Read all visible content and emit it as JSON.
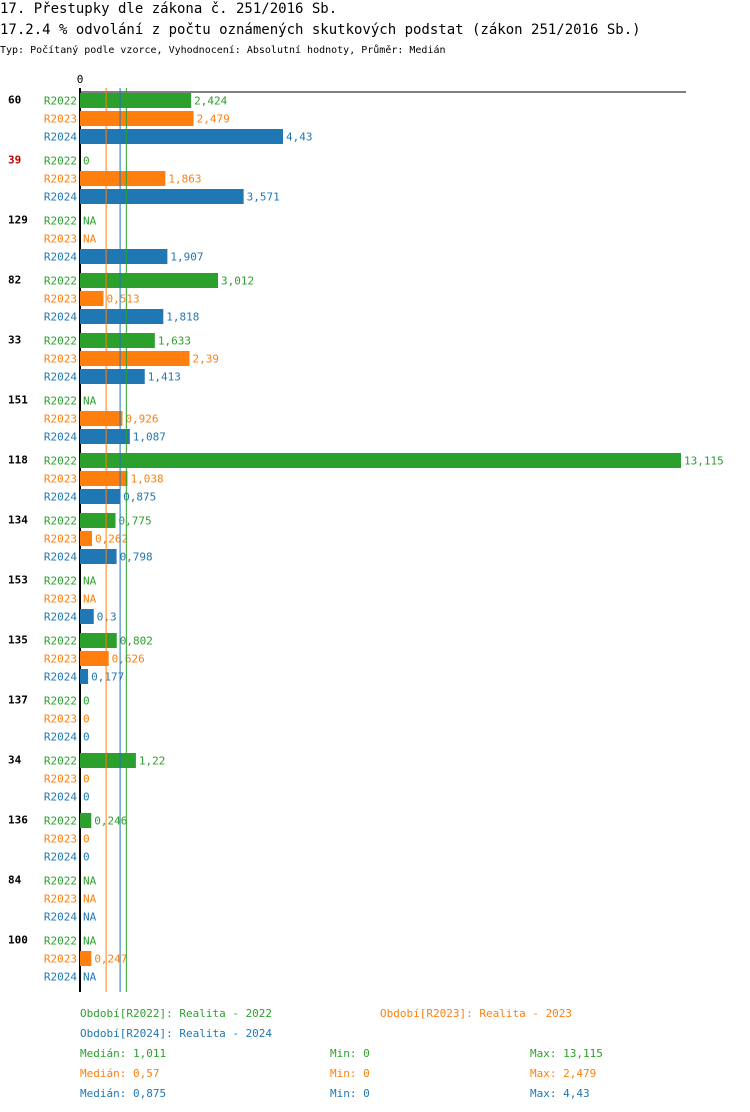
{
  "chart_data": {
    "type": "bar",
    "orientation": "horizontal",
    "title": "17. Přestupky dle zákona č. 251/2016 Sb.",
    "subtitle": "17.2.4 % odvolání z počtu oznámených skutkových podstat (zákon 251/2016 Sb.)",
    "description": "Typ: Počítaný podle vzorce, Vyhodnocení: Absolutní hodnoty, Průměr: Medián",
    "categories": [
      "60",
      "39",
      "129",
      "82",
      "33",
      "151",
      "118",
      "134",
      "153",
      "135",
      "137",
      "34",
      "136",
      "84",
      "100"
    ],
    "category_colors": [
      "#000000",
      "#c00000",
      "#000000",
      "#000000",
      "#000000",
      "#000000",
      "#000000",
      "#000000",
      "#000000",
      "#000000",
      "#000000",
      "#000000",
      "#000000",
      "#000000",
      "#000000"
    ],
    "xlim": [
      0,
      13.115
    ],
    "xticks": [
      0
    ],
    "series": [
      {
        "name": "R2022",
        "color": "#2ca02c",
        "legend": "Období[R2022]: Realita - 2022",
        "values": [
          2.424,
          0,
          null,
          3.012,
          1.633,
          null,
          13.115,
          0.775,
          null,
          0.802,
          0,
          1.22,
          0.246,
          null,
          null
        ],
        "value_labels": [
          "2,424",
          "0",
          "NA",
          "3,012",
          "1,633",
          "NA",
          "13,115",
          "0,775",
          "NA",
          "0,802",
          "0",
          "1,22",
          "0,246",
          "NA",
          "NA"
        ],
        "median": 1.011,
        "median_label": "Medián: 1,011",
        "min": 0,
        "min_label": "Min: 0",
        "max": 13.115,
        "max_label": "Max: 13,115"
      },
      {
        "name": "R2023",
        "color": "#ff7f0e",
        "legend": "Období[R2023]: Realita - 2023",
        "values": [
          2.479,
          1.863,
          null,
          0.513,
          2.39,
          0.926,
          1.038,
          0.262,
          null,
          0.626,
          0,
          0,
          0,
          null,
          0.247
        ],
        "value_labels": [
          "2,479",
          "1,863",
          "NA",
          "0,513",
          "2,39",
          "0,926",
          "1,038",
          "0,262",
          "NA",
          "0,626",
          "0",
          "0",
          "0",
          "NA",
          "0,247"
        ],
        "median": 0.57,
        "median_label": "Medián: 0,57",
        "min": 0,
        "min_label": "Min: 0",
        "max": 2.479,
        "max_label": "Max: 2,479"
      },
      {
        "name": "R2024",
        "color": "#1f77b4",
        "legend": "Období[R2024]: Realita - 2024",
        "values": [
          4.43,
          3.571,
          1.907,
          1.818,
          1.413,
          1.087,
          0.875,
          0.798,
          0.3,
          0.177,
          0,
          0,
          0,
          null,
          null
        ],
        "value_labels": [
          "4,43",
          "3,571",
          "1,907",
          "1,818",
          "1,413",
          "1,087",
          "0,875",
          "0,798",
          "0,3",
          "0,177",
          "0",
          "0",
          "0",
          "NA",
          "NA"
        ],
        "median": 0.875,
        "median_label": "Medián: 0,875",
        "min": 0,
        "min_label": "Min: 0",
        "max": 4.43,
        "max_label": "Max: 4,43"
      }
    ]
  }
}
